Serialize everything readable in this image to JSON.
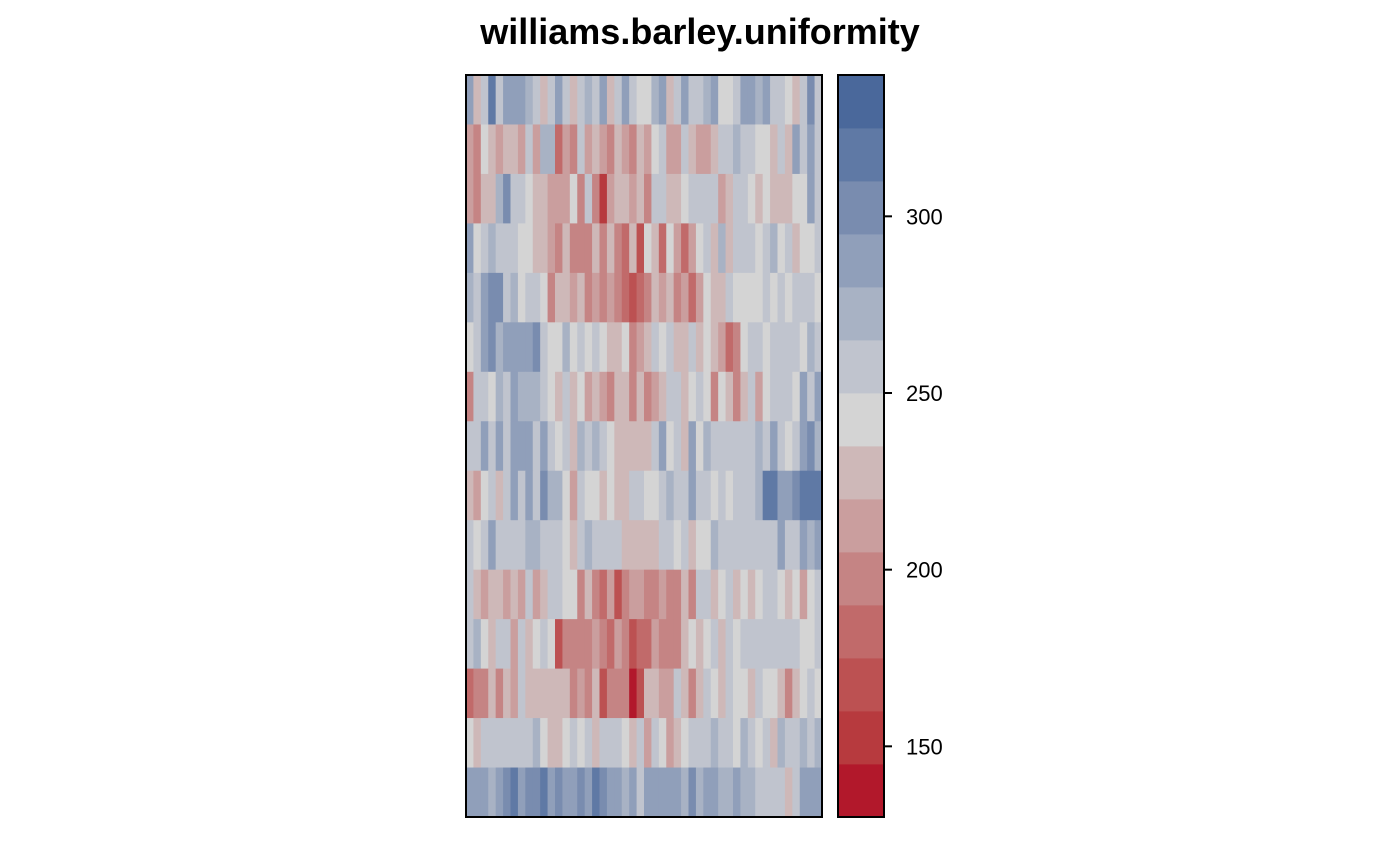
{
  "chart_data": {
    "type": "heatmap",
    "title": "williams.barley.uniformity",
    "xlabel": "",
    "ylabel": "",
    "n_rows": 15,
    "n_cols": 48,
    "legend": {
      "position": "right",
      "breaks": [
        130,
        145,
        160,
        175,
        190,
        205,
        220,
        235,
        250,
        265,
        280,
        295,
        310,
        325,
        340
      ],
      "colors": [
        "#b2182b",
        "#b73a3e",
        "#bc5152",
        "#c16a6a",
        "#c58484",
        "#ca9e9e",
        "#ceb8b8",
        "#d4d4d4",
        "#c0c4ce",
        "#a8b2c4",
        "#909fba",
        "#798caf",
        "#5f79a5",
        "#4a689b"
      ],
      "ticks": [
        150,
        200,
        250,
        300
      ],
      "tick_labels": [
        "150",
        "200",
        "250",
        "300"
      ]
    },
    "values": [
      [
        286,
        232,
        262,
        312,
        262,
        282,
        282,
        282,
        272,
        262,
        222,
        252,
        282,
        262,
        232,
        252,
        272,
        262,
        282,
        232,
        262,
        282,
        252,
        242,
        242,
        272,
        282,
        222,
        262,
        282,
        252,
        262,
        272,
        282,
        242,
        242,
        252,
        282,
        282,
        272,
        292,
        262,
        262,
        242,
        222,
        262,
        302,
        252
      ],
      [
        212,
        192,
        242,
        232,
        212,
        232,
        232,
        212,
        262,
        212,
        272,
        272,
        182,
        212,
        192,
        262,
        212,
        232,
        212,
        192,
        232,
        212,
        202,
        222,
        212,
        242,
        262,
        212,
        212,
        262,
        222,
        212,
        212,
        232,
        252,
        262,
        272,
        252,
        252,
        242,
        242,
        232,
        262,
        232,
        282,
        262,
        282,
        262
      ],
      [
        212,
        202,
        232,
        222,
        272,
        302,
        262,
        252,
        242,
        222,
        232,
        212,
        212,
        212,
        242,
        202,
        252,
        202,
        152,
        212,
        232,
        222,
        212,
        222,
        202,
        252,
        262,
        222,
        222,
        242,
        262,
        252,
        262,
        262,
        212,
        232,
        252,
        262,
        242,
        232,
        242,
        232,
        232,
        222,
        242,
        242,
        282,
        252
      ],
      [
        282,
        242,
        252,
        272,
        262,
        252,
        252,
        242,
        242,
        222,
        222,
        212,
        202,
        222,
        202,
        192,
        202,
        222,
        202,
        222,
        202,
        182,
        222,
        172,
        242,
        222,
        182,
        242,
        212,
        182,
        212,
        242,
        262,
        222,
        272,
        232,
        262,
        252,
        252,
        242,
        252,
        272,
        242,
        262,
        222,
        242,
        242,
        262
      ],
      [
        272,
        262,
        282,
        302,
        302,
        262,
        272,
        242,
        252,
        252,
        242,
        202,
        232,
        232,
        212,
        222,
        202,
        212,
        192,
        212,
        202,
        182,
        172,
        182,
        202,
        222,
        212,
        222,
        202,
        212,
        182,
        212,
        242,
        222,
        222,
        252,
        242,
        242,
        242,
        242,
        262,
        242,
        252,
        242,
        252,
        262,
        262,
        242
      ],
      [
        242,
        262,
        292,
        302,
        272,
        292,
        292,
        292,
        292,
        302,
        252,
        242,
        242,
        272,
        242,
        252,
        242,
        262,
        242,
        222,
        232,
        242,
        202,
        212,
        222,
        252,
        242,
        252,
        222,
        232,
        262,
        222,
        242,
        232,
        212,
        182,
        192,
        242,
        262,
        252,
        242,
        262,
        262,
        252,
        262,
        242,
        272,
        262
      ],
      [
        202,
        252,
        252,
        242,
        272,
        252,
        282,
        272,
        272,
        272,
        262,
        242,
        232,
        262,
        232,
        242,
        212,
        222,
        212,
        202,
        222,
        232,
        202,
        222,
        192,
        212,
        222,
        262,
        262,
        232,
        242,
        262,
        242,
        202,
        242,
        222,
        202,
        232,
        252,
        212,
        242,
        262,
        262,
        252,
        242,
        282,
        262,
        282
      ],
      [
        262,
        262,
        282,
        262,
        282,
        252,
        282,
        282,
        292,
        262,
        282,
        252,
        242,
        262,
        232,
        272,
        262,
        272,
        252,
        242,
        222,
        232,
        232,
        232,
        222,
        252,
        282,
        242,
        262,
        232,
        282,
        242,
        272,
        262,
        262,
        262,
        262,
        262,
        262,
        272,
        262,
        282,
        252,
        242,
        262,
        292,
        302,
        272
      ],
      [
        232,
        212,
        242,
        262,
        232,
        262,
        282,
        262,
        282,
        262,
        302,
        272,
        272,
        242,
        212,
        252,
        242,
        242,
        222,
        242,
        232,
        222,
        262,
        262,
        242,
        242,
        262,
        272,
        262,
        262,
        282,
        252,
        262,
        242,
        252,
        242,
        262,
        262,
        262,
        272,
        312,
        312,
        282,
        282,
        302,
        322,
        322,
        322
      ],
      [
        262,
        242,
        252,
        282,
        262,
        262,
        262,
        262,
        272,
        272,
        262,
        252,
        262,
        242,
        232,
        262,
        272,
        252,
        262,
        252,
        252,
        222,
        222,
        222,
        232,
        232,
        262,
        252,
        242,
        252,
        232,
        242,
        242,
        272,
        252,
        262,
        252,
        262,
        252,
        262,
        262,
        262,
        282,
        262,
        252,
        282,
        272,
        282
      ],
      [
        252,
        222,
        212,
        222,
        232,
        212,
        232,
        212,
        252,
        212,
        222,
        252,
        252,
        242,
        242,
        202,
        222,
        192,
        182,
        212,
        172,
        202,
        212,
        212,
        202,
        202,
        212,
        202,
        192,
        232,
        202,
        252,
        262,
        232,
        242,
        252,
        232,
        242,
        222,
        242,
        262,
        252,
        242,
        232,
        242,
        212,
        242,
        262
      ],
      [
        262,
        272,
        242,
        222,
        262,
        252,
        212,
        262,
        232,
        242,
        262,
        242,
        172,
        202,
        202,
        192,
        202,
        212,
        202,
        182,
        212,
        202,
        172,
        182,
        182,
        212,
        202,
        202,
        202,
        222,
        242,
        232,
        242,
        252,
        232,
        262,
        242,
        262,
        252,
        262,
        262,
        252,
        262,
        262,
        262,
        242,
        242,
        252
      ],
      [
        182,
        192,
        202,
        222,
        202,
        222,
        212,
        252,
        232,
        232,
        232,
        222,
        222,
        222,
        202,
        212,
        192,
        222,
        172,
        202,
        192,
        192,
        142,
        162,
        222,
        222,
        212,
        212,
        252,
        232,
        202,
        222,
        262,
        242,
        232,
        252,
        242,
        242,
        232,
        262,
        242,
        242,
        222,
        202,
        232,
        242,
        252,
        242
      ],
      [
        242,
        232,
        252,
        262,
        252,
        252,
        252,
        262,
        252,
        272,
        242,
        232,
        232,
        242,
        262,
        242,
        262,
        222,
        262,
        262,
        252,
        242,
        222,
        262,
        212,
        262,
        242,
        212,
        232,
        242,
        252,
        262,
        262,
        272,
        252,
        262,
        242,
        272,
        252,
        242,
        262,
        222,
        272,
        252,
        262,
        272,
        262,
        272
      ],
      [
        282,
        292,
        282,
        272,
        292,
        302,
        322,
        292,
        302,
        302,
        312,
        292,
        302,
        292,
        282,
        302,
        282,
        312,
        302,
        292,
        292,
        272,
        292,
        262,
        292,
        292,
        282,
        282,
        292,
        272,
        302,
        272,
        292,
        282,
        272,
        272,
        292,
        272,
        272,
        262,
        262,
        262,
        262,
        232,
        262,
        282,
        282,
        292
      ]
    ]
  }
}
